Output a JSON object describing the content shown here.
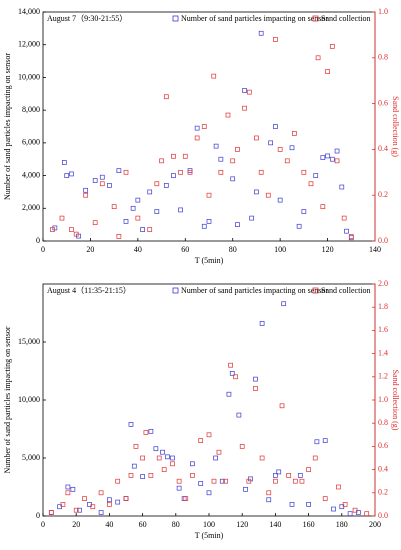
{
  "chart_data": [
    {
      "type": "scatter",
      "annotation": "August 7（9:30-21:55）",
      "x_label": "T (5min)",
      "y_label": "Number of sand particles impacting on sensor",
      "y2_label": "Sand collection (g)",
      "xlim": [
        0,
        140
      ],
      "xticks": [
        0,
        20,
        40,
        60,
        80,
        100,
        120,
        140
      ],
      "ylim": [
        0,
        14000
      ],
      "yticks": [
        0,
        {
          "value": 2000,
          "label": "2,000"
        },
        {
          "value": 4000,
          "label": "4,000"
        },
        {
          "value": 6000,
          "label": "6,000"
        },
        {
          "value": 8000,
          "label": "8,000"
        },
        {
          "value": 10000,
          "label": "10,000"
        },
        {
          "value": 12000,
          "label": "12,000"
        },
        {
          "value": 14000,
          "label": "14,000"
        }
      ],
      "y2lim": [
        0,
        1
      ],
      "y2ticks": [
        {
          "value": 0,
          "label": "0.0"
        },
        0.2,
        0.4,
        0.6,
        0.8,
        {
          "value": 1,
          "label": "1.0"
        }
      ],
      "series": [
        {
          "name": "Number of sand particles impacting on sensor",
          "color": "#3a3ad0",
          "axis": "y",
          "x": [
            5,
            9,
            10,
            12,
            15,
            18,
            22,
            25,
            28,
            32,
            35,
            38,
            40,
            42,
            45,
            48,
            52,
            55,
            58,
            62,
            65,
            68,
            70,
            73,
            75,
            80,
            82,
            85,
            88,
            90,
            92,
            96,
            98,
            100,
            105,
            108,
            110,
            115,
            118,
            120,
            122,
            124,
            126,
            128,
            130
          ],
          "values": [
            800,
            4800,
            4000,
            4100,
            300,
            3100,
            3700,
            3900,
            3400,
            4300,
            1200,
            2000,
            2500,
            700,
            3000,
            1800,
            3400,
            4000,
            1900,
            4300,
            6900,
            900,
            1200,
            5800,
            5000,
            3800,
            1000,
            9200,
            1400,
            3000,
            12700,
            6000,
            7000,
            2500,
            5700,
            900,
            1800,
            4000,
            5100,
            5200,
            5000,
            5500,
            3300,
            600,
            200
          ]
        },
        {
          "name": "Sand collection",
          "color": "#e03030",
          "axis": "y2",
          "x": [
            4,
            8,
            12,
            14,
            18,
            22,
            25,
            30,
            32,
            35,
            40,
            45,
            48,
            50,
            52,
            55,
            58,
            60,
            62,
            65,
            68,
            70,
            72,
            75,
            78,
            80,
            82,
            85,
            87,
            90,
            92,
            95,
            98,
            100,
            103,
            106,
            110,
            113,
            116,
            118,
            120,
            122,
            124,
            127,
            130
          ],
          "values": [
            0.05,
            0.1,
            0.05,
            0.03,
            0.2,
            0.08,
            0.25,
            0.15,
            0.02,
            0.3,
            0.1,
            0.05,
            0.25,
            0.35,
            0.63,
            0.37,
            0.3,
            0.37,
            0.3,
            0.45,
            0.5,
            0.2,
            0.72,
            0.3,
            0.55,
            0.35,
            0.4,
            0.58,
            0.65,
            0.45,
            0.3,
            0.2,
            0.88,
            0.4,
            0.35,
            0.47,
            0.3,
            0.25,
            0.8,
            0.15,
            0.74,
            0.85,
            0.35,
            0.1,
            0.02
          ]
        }
      ]
    },
    {
      "type": "scatter",
      "annotation": "August 4（11:35-21:15）",
      "x_label": "T (5min)",
      "y_label": "Number of sand particles impacting on sensor",
      "y2_label": "Sand collection (g)",
      "xlim": [
        0,
        200
      ],
      "xticks": [
        0,
        20,
        40,
        60,
        80,
        100,
        120,
        140,
        160,
        180,
        200
      ],
      "ylim": [
        0,
        20000
      ],
      "yticks": [
        0,
        {
          "value": 5000,
          "label": "5,000"
        },
        {
          "value": 10000,
          "label": "10,000"
        },
        {
          "value": 15000,
          "label": "15,000"
        }
      ],
      "y2lim": [
        0,
        2
      ],
      "y2ticks": [
        {
          "value": 0,
          "label": "0.0"
        },
        0.2,
        0.4,
        0.6,
        0.8,
        {
          "value": 1,
          "label": "1.0"
        },
        1.2,
        1.4,
        1.6,
        1.8,
        {
          "value": 2,
          "label": "2.0"
        }
      ],
      "series": [
        {
          "name": "Number of sand particles impacting on sensor",
          "color": "#3a3ad0",
          "axis": "y",
          "x": [
            5,
            10,
            15,
            18,
            22,
            28,
            35,
            40,
            45,
            50,
            53,
            55,
            60,
            65,
            68,
            72,
            75,
            78,
            82,
            85,
            90,
            95,
            100,
            104,
            108,
            112,
            114,
            118,
            122,
            125,
            128,
            132,
            136,
            140,
            142,
            145,
            150,
            155,
            160,
            165,
            170,
            175,
            180,
            185,
            190
          ],
          "values": [
            300,
            800,
            2500,
            2300,
            500,
            1000,
            300,
            1400,
            1200,
            1500,
            7900,
            4300,
            3400,
            7300,
            5800,
            5500,
            5100,
            5000,
            2400,
            1500,
            4500,
            2800,
            2000,
            5000,
            3000,
            10500,
            12300,
            8700,
            2300,
            3200,
            11800,
            16600,
            1400,
            3500,
            3800,
            18300,
            1000,
            3500,
            1000,
            6400,
            6500,
            600,
            800,
            200,
            300
          ]
        },
        {
          "name": "Sand collection",
          "color": "#e03030",
          "axis": "y2",
          "x": [
            5,
            12,
            15,
            20,
            25,
            30,
            35,
            40,
            45,
            50,
            53,
            56,
            60,
            62,
            65,
            70,
            73,
            78,
            82,
            86,
            90,
            95,
            100,
            103,
            106,
            110,
            113,
            116,
            120,
            124,
            128,
            132,
            136,
            140,
            144,
            148,
            152,
            156,
            160,
            164,
            170,
            178,
            182,
            188,
            195
          ],
          "values": [
            0.03,
            0.1,
            0.2,
            0.05,
            0.15,
            0.08,
            0.2,
            0.1,
            0.3,
            0.15,
            0.35,
            0.6,
            0.5,
            0.72,
            0.35,
            0.5,
            0.4,
            0.45,
            0.3,
            0.15,
            0.35,
            0.65,
            0.7,
            0.3,
            0.55,
            0.3,
            1.3,
            1.2,
            0.6,
            0.3,
            1.1,
            0.5,
            0.2,
            0.3,
            0.95,
            0.35,
            0.3,
            0.3,
            0.4,
            0.5,
            0.15,
            0.25,
            0.1,
            0.05,
            0.02
          ]
        }
      ]
    }
  ]
}
